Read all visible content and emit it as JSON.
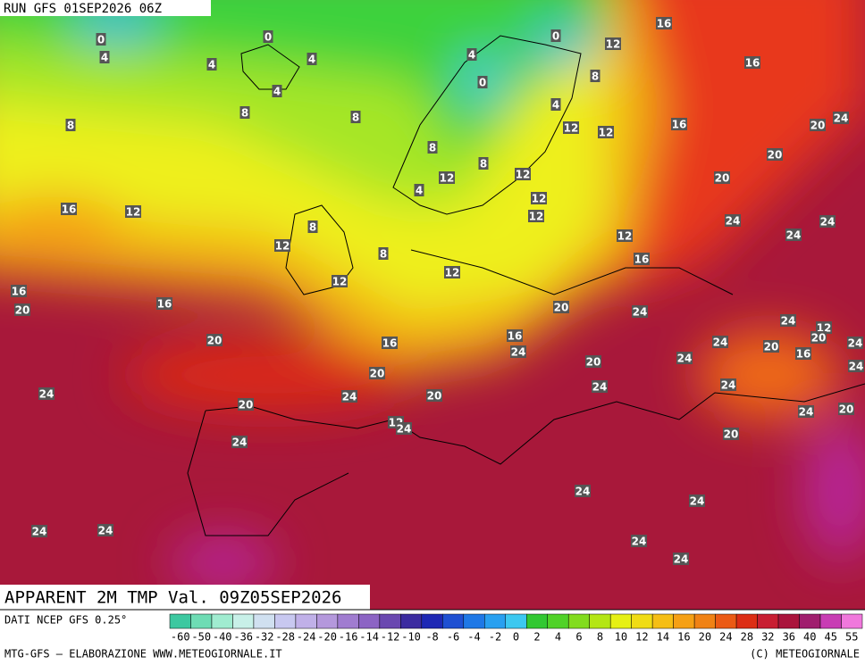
{
  "header": {
    "run": "RUN GFS 01SEP2026 06Z"
  },
  "title": "APPARENT 2M TMP Val. 09Z05SEP2026",
  "source": "DATI NCEP GFS 0.25°",
  "footer": {
    "left": "MTG-GFS — ELABORAZIONE WWW.METEOGIORNALE.IT",
    "right": "(C) METEOGIORNALE"
  },
  "colorbar": {
    "labels": [
      -60,
      -50,
      -40,
      -36,
      -32,
      -28,
      -24,
      -20,
      -16,
      -14,
      -12,
      -10,
      -8,
      -6,
      -4,
      -2,
      0,
      2,
      4,
      6,
      8,
      10,
      12,
      14,
      16,
      20,
      24,
      28,
      32,
      36,
      40,
      45,
      55
    ],
    "colors": [
      "#3cc8a0",
      "#6edcb4",
      "#a0ecd0",
      "#c8f0e8",
      "#d0e0f0",
      "#c8c8f0",
      "#c0b0e8",
      "#b498dc",
      "#a07cd0",
      "#8c64c4",
      "#6a48b0",
      "#3c2ca0",
      "#1e28b4",
      "#1e50d2",
      "#1e78e6",
      "#28a0f0",
      "#3cc8f0",
      "#32c832",
      "#50d228",
      "#82dc1e",
      "#b4e614",
      "#e6f014",
      "#f0dc14",
      "#f5be14",
      "#f5a014",
      "#f08214",
      "#eb5a14",
      "#dc2d14",
      "#c81e32",
      "#aa143c",
      "#a01e6e",
      "#c83cb4",
      "#f078dc"
    ]
  },
  "map_labels": [
    0,
    4,
    0,
    4,
    4,
    4,
    8,
    8,
    8,
    16,
    12,
    0,
    4,
    16,
    8,
    0,
    4,
    12,
    12,
    16,
    20,
    24,
    8,
    8,
    12,
    12,
    20,
    20,
    4,
    12,
    12,
    24,
    24,
    16,
    12,
    8,
    12,
    12,
    24,
    8,
    16,
    12,
    12,
    16,
    20,
    16,
    20,
    24,
    24,
    12,
    20,
    16,
    16,
    24,
    20,
    24,
    20,
    24,
    16,
    24,
    24,
    20,
    20,
    24,
    20,
    24,
    24,
    24,
    20,
    12,
    24,
    24,
    20,
    20,
    24,
    24,
    24,
    24,
    24,
    24,
    24
  ]
}
